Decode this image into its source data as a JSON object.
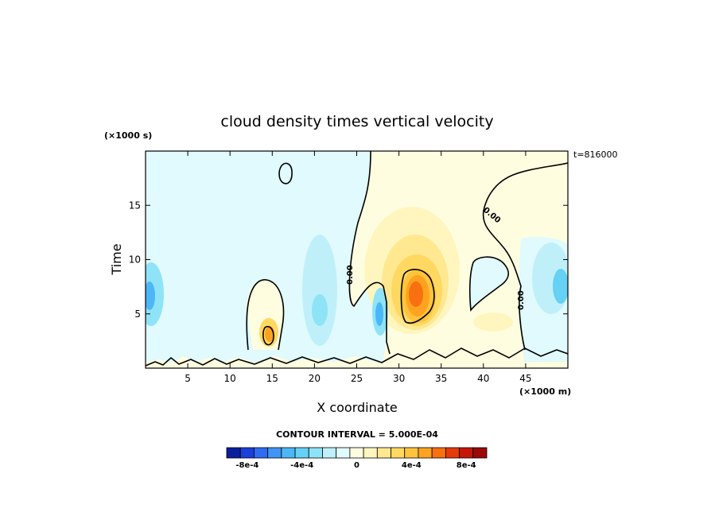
{
  "chart_data": {
    "type": "heatmap",
    "title": "cloud density times vertical velocity",
    "xlabel": "X coordinate",
    "ylabel": "Time",
    "x_unit_label": "(×1000 m)",
    "y_unit_label": "(×1000 s)",
    "timestamp_label": "t=816000",
    "contour_interval_label": "CONTOUR INTERVAL = 5.000E-04",
    "xlim": [
      0,
      50
    ],
    "ylim": [
      0,
      20
    ],
    "x_ticks": [
      5,
      10,
      15,
      20,
      25,
      30,
      35,
      40,
      45
    ],
    "y_ticks": [
      5,
      10,
      15
    ],
    "zero_contour_labels": [
      "0.00",
      "0.00",
      "0.00",
      "0.00"
    ],
    "colorbar": {
      "tick_labels": [
        "-8e-4",
        "-4e-4",
        "0",
        "4e-4",
        "8e-4"
      ],
      "tick_values": [
        -0.0008,
        -0.0004,
        0,
        0.0004,
        0.0008
      ],
      "bin_colors": [
        "#0a1e9e",
        "#1b3fd9",
        "#2f6cf2",
        "#3f95f5",
        "#4cb7f7",
        "#64d1f5",
        "#8fe3f7",
        "#bff0fa",
        "#e0fafd",
        "#fffde0",
        "#fff6bf",
        "#ffe890",
        "#ffd862",
        "#ffc43c",
        "#ffa21f",
        "#f8700f",
        "#e53a0c",
        "#c8150a",
        "#9b0a08"
      ]
    },
    "features": [
      {
        "x": 1,
        "y": 7,
        "value": -0.0004
      },
      {
        "x": 14.8,
        "y": 3,
        "value": 0.0009
      },
      {
        "x": 31.5,
        "y": 6.5,
        "value": 0.0011
      },
      {
        "x": 33,
        "y": 4,
        "value": 0.0008
      },
      {
        "x": 28,
        "y": 5,
        "value": -0.0004
      },
      {
        "x": 49,
        "y": 7,
        "value": -0.0004
      }
    ]
  }
}
